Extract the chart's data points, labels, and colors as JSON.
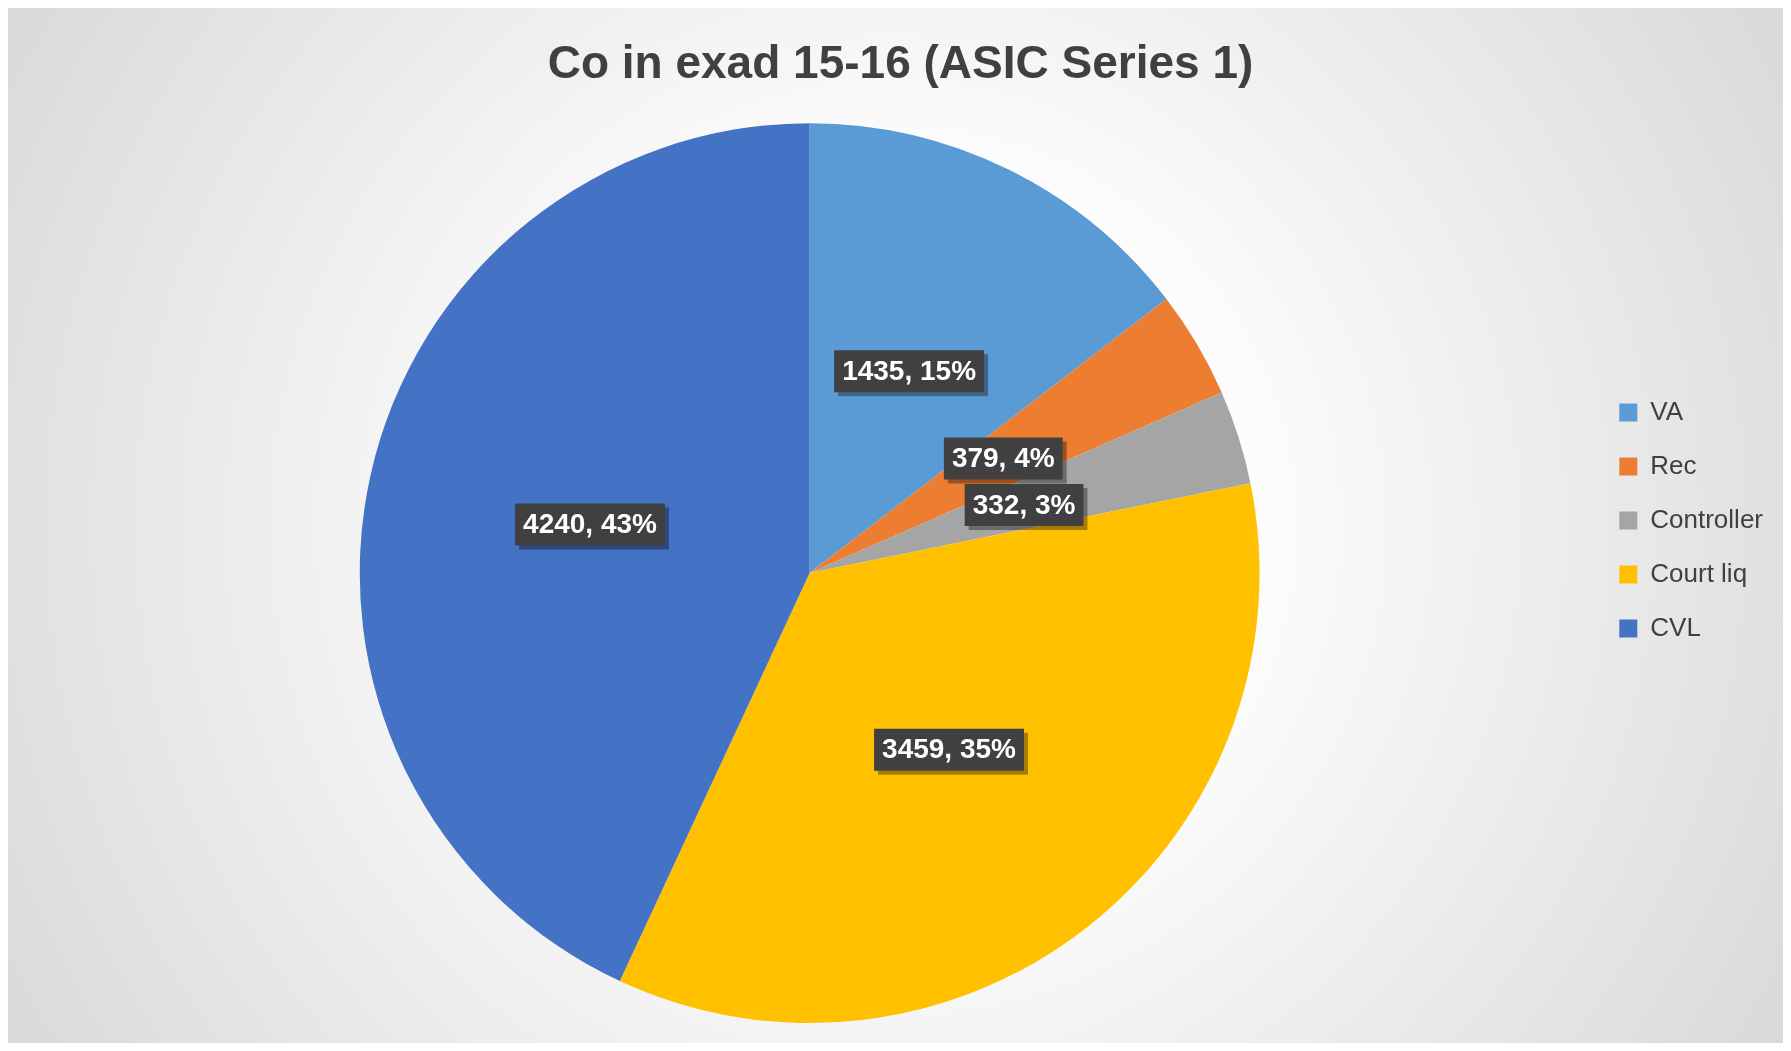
{
  "chart_data": {
    "type": "pie",
    "title": "Co in exad 15-16 (ASIC Series 1)",
    "categories": [
      "VA",
      "Rec",
      "Controller",
      "Court liq",
      "CVL"
    ],
    "values": [
      1435,
      379,
      332,
      3459,
      4240
    ],
    "colors": [
      "#5b9bd5",
      "#ed7d31",
      "#a5a5a5",
      "#ffc000",
      "#4472c4"
    ],
    "value_labels": [
      "1435, 15%",
      "379, 4%",
      "332, 3%",
      "3459, 35%",
      "4240, 43%"
    ],
    "legend": "right"
  }
}
